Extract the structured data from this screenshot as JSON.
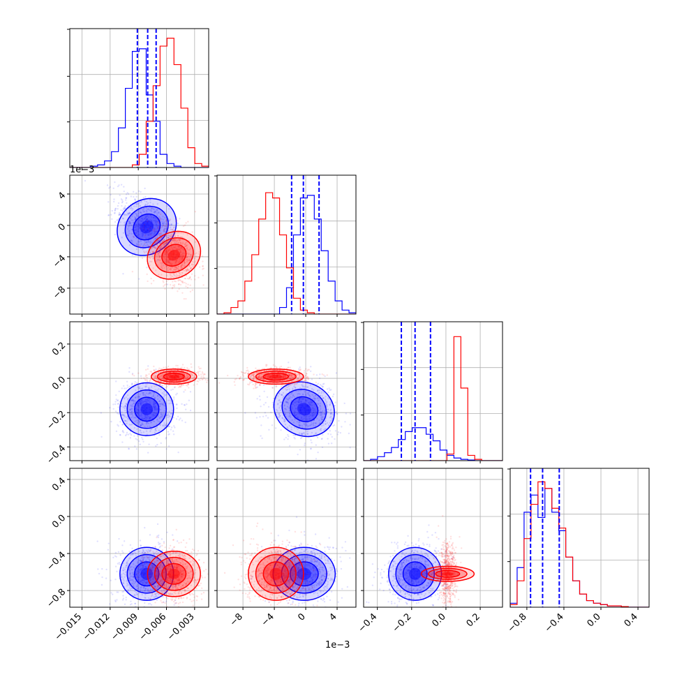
{
  "chart_data": {
    "type": "scatter",
    "title": "",
    "layout": "corner-plot",
    "n_params": 4,
    "grid": true,
    "colors": {
      "series_a": "#0000ff",
      "series_b": "#ff0000"
    },
    "offset_labels": {
      "p0_y": "1e−3",
      "p1_x": "1e−3"
    },
    "params": [
      {
        "range": [
          -0.0163,
          -0.0015
        ],
        "ticks": [
          -0.015,
          -0.012,
          -0.009,
          -0.006,
          -0.003
        ],
        "tick_labels": [
          "−0.015",
          "−0.012",
          "−0.009",
          "−0.006",
          "−0.003"
        ]
      },
      {
        "range": [
          -0.0113,
          0.0064
        ],
        "ticks": [
          -0.008,
          -0.004,
          0,
          0.004
        ],
        "tick_labels": [
          "−8",
          "−4",
          "0",
          "4"
        ]
      },
      {
        "range": [
          -0.48,
          0.33
        ],
        "ticks": [
          -0.4,
          -0.2,
          0.0,
          0.2
        ],
        "tick_labels": [
          "−0.4",
          "−0.2",
          "0.0",
          "0.2"
        ]
      },
      {
        "range": [
          -0.98,
          0.52
        ],
        "ticks": [
          -0.8,
          -0.4,
          0.0,
          0.4
        ],
        "tick_labels": [
          "−0.8",
          "−0.4",
          "0.0",
          "0.4"
        ]
      }
    ],
    "series": [
      {
        "color": "#0000ff",
        "means": [
          -0.0081,
          -0.0002,
          -0.18,
          -0.62
        ],
        "stds": [
          0.0013,
          0.0018,
          0.07,
          0.13
        ],
        "quantiles": [
          [
            -0.0091,
            -0.008,
            -0.0071
          ],
          [
            -0.0018,
            -0.0003,
            0.0017
          ],
          [
            -0.26,
            -0.18,
            -0.09
          ],
          [
            -0.76,
            -0.63,
            -0.45
          ]
        ]
      },
      {
        "color": "#ff0000",
        "means": [
          -0.0052,
          -0.0038,
          0.01,
          -0.62
        ],
        "stds": [
          0.0011,
          0.0016,
          0.02,
          0.13
        ],
        "quantiles": []
      }
    ],
    "hist_1d": [
      {
        "edges": [
          -0.0163,
          -0.0015
        ],
        "blue": [
          0,
          0,
          0,
          0.01,
          0.02,
          0.05,
          0.12,
          0.3,
          0.6,
          0.88,
          0.9,
          0.55,
          0.35,
          0.1,
          0.03,
          0.01,
          0,
          0,
          0,
          0
        ],
        "red": [
          0,
          0,
          0,
          0,
          0,
          0,
          0,
          0,
          0,
          0.02,
          0.1,
          0.35,
          0.62,
          0.92,
          0.98,
          0.78,
          0.45,
          0.15,
          0.03,
          0.01
        ]
      },
      {
        "edges": [
          -0.0113,
          0.0064
        ],
        "blue": [
          0,
          0,
          0,
          0,
          0,
          0,
          0,
          0,
          0,
          0.05,
          0.2,
          0.6,
          0.88,
          0.9,
          0.72,
          0.48,
          0.25,
          0.1,
          0.03,
          0.01
        ],
        "red": [
          0,
          0.01,
          0.05,
          0.1,
          0.25,
          0.45,
          0.72,
          0.92,
          0.88,
          0.6,
          0.35,
          0.12,
          0.03,
          0.01,
          0,
          0,
          0,
          0,
          0,
          0
        ]
      },
      {
        "edges": [
          -0.48,
          0.33
        ],
        "blue": [
          0,
          0.01,
          0.03,
          0.06,
          0.1,
          0.16,
          0.22,
          0.25,
          0.25,
          0.2,
          0.15,
          0.08,
          0.04,
          0.02,
          0.01,
          0.005,
          0,
          0,
          0,
          0
        ],
        "red": [
          0,
          0,
          0,
          0,
          0,
          0,
          0,
          0,
          0,
          0,
          0,
          0,
          0.05,
          0.94,
          0.55,
          0.04,
          0.01,
          0,
          0,
          0
        ]
      },
      {
        "edges": [
          -0.98,
          0.52
        ],
        "blue": [
          0.03,
          0.3,
          0.72,
          0.85,
          0.68,
          0.9,
          0.72,
          0.58,
          0.38,
          0.2,
          0.1,
          0.05,
          0.03,
          0.02,
          0.01,
          0.01,
          0.005,
          0,
          0,
          0
        ],
        "red": [
          0.02,
          0.2,
          0.52,
          0.78,
          0.95,
          0.9,
          0.75,
          0.6,
          0.38,
          0.2,
          0.1,
          0.05,
          0.03,
          0.02,
          0.01,
          0.01,
          0.005,
          0,
          0,
          0
        ]
      }
    ]
  }
}
